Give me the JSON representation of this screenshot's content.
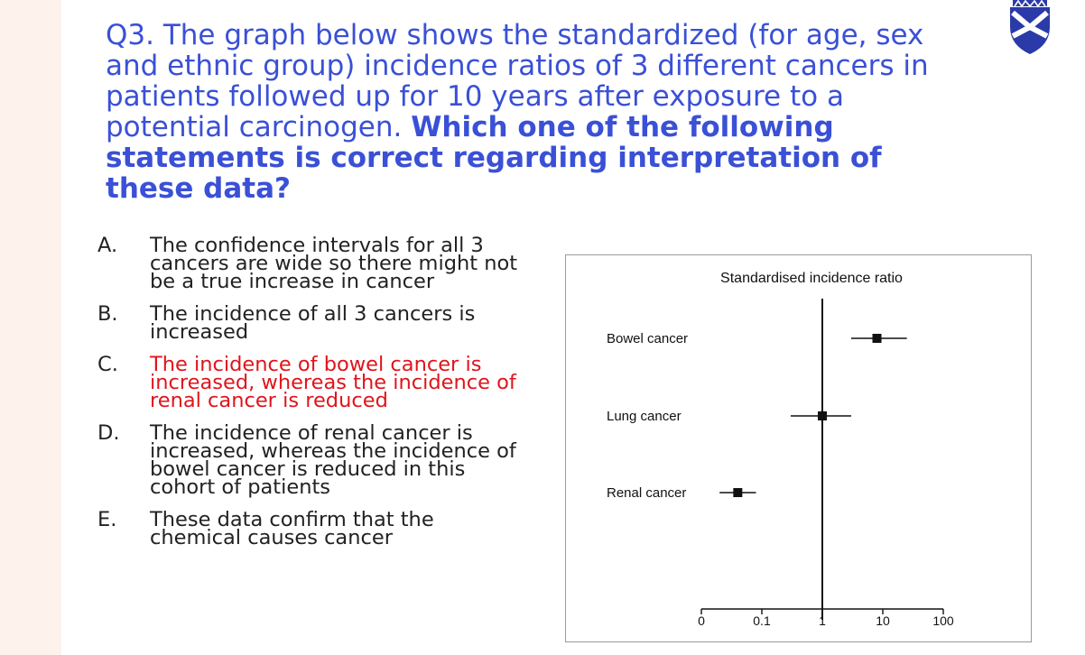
{
  "question": {
    "prefix": "Q3. The graph below shows the standardized (for age, sex and ethnic group) incidence ratios of 3 different cancers in patients followed up for 10 years after exposure to a potential carcinogen. ",
    "bold": "Which one of the following statements is correct regarding interpretation of these data?"
  },
  "options": [
    {
      "letter": "A.",
      "text": "The confidence intervals for all 3 cancers are wide so there might not be a true increase in cancer"
    },
    {
      "letter": "B.",
      "text": "The incidence of all 3 cancers is increased"
    },
    {
      "letter": "C.",
      "text": "The incidence of bowel cancer is increased, whereas the incidence of renal cancer is reduced"
    },
    {
      "letter": "D.",
      "text": "The incidence of renal cancer is increased, whereas the incidence of bowel cancer is reduced in this cohort of patients"
    },
    {
      "letter": "E.",
      "text": "These data confirm that the chemical causes cancer"
    }
  ],
  "colors": {
    "question_text": "#3a50d6",
    "correct_option": "#e0141c",
    "crest": "#2a3aa8"
  },
  "icons": {
    "logo": "university-crest-icon"
  },
  "chart_data": {
    "type": "forest",
    "title": "Standardised incidence ratio",
    "x_scale": "log",
    "x_ticks": [
      "0",
      "0.1",
      "1",
      "10",
      "100"
    ],
    "reference_line": 1,
    "categories": [
      "Bowel cancer",
      "Lung cancer",
      "Renal cancer"
    ],
    "estimates": [
      8,
      1,
      0.04
    ],
    "ci_low": [
      3,
      0.3,
      0.02
    ],
    "ci_high": [
      25,
      3,
      0.08
    ]
  }
}
